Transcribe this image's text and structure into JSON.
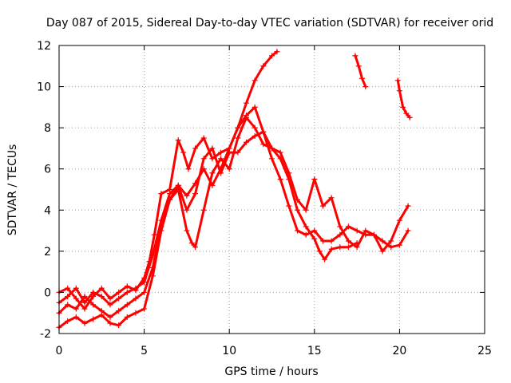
{
  "chart_data": {
    "type": "scatter",
    "title": "Day 087 of 2015, Sidereal Day-to-day VTEC variation (SDTVAR) for receiver orid",
    "xlabel": "GPS time / hours",
    "ylabel": "SDTVAR / TECUs",
    "xlim": [
      0,
      25
    ],
    "ylim": [
      -2,
      12
    ],
    "xticks": [
      "0",
      "5",
      "10",
      "15",
      "20",
      "25"
    ],
    "yticks": [
      "-2",
      "0",
      "2",
      "4",
      "6",
      "8",
      "10",
      "12"
    ],
    "grid": true,
    "marker": "plus",
    "color": "#ff0000",
    "series": [
      {
        "x": [
          0.0,
          0.5,
          1.0,
          1.5,
          2.0,
          2.5,
          3.0,
          3.5,
          4.0,
          4.5,
          5.0,
          5.3,
          5.6,
          6.0,
          6.5,
          7.0,
          7.3,
          7.6,
          8.0,
          8.5,
          9.0,
          9.5,
          10.0,
          10.5,
          11.0,
          11.5,
          12.0,
          12.5,
          12.8
        ],
        "y": [
          0.0,
          0.2,
          -0.3,
          -0.8,
          -0.2,
          0.2,
          -0.3,
          0.0,
          0.3,
          0.1,
          0.7,
          1.5,
          2.8,
          4.8,
          5.0,
          7.4,
          6.8,
          6.0,
          7.0,
          7.5,
          6.5,
          6.8,
          7.0,
          8.0,
          9.2,
          10.3,
          11.0,
          11.5,
          11.7
        ]
      },
      {
        "x": [
          0.0,
          0.5,
          1.0,
          1.5,
          2.0,
          2.5,
          3.0,
          3.5,
          4.0,
          4.5,
          5.0,
          5.5,
          6.0,
          6.5,
          7.0,
          7.5,
          8.0,
          8.5,
          9.0,
          9.5,
          10.0,
          10.5,
          11.0,
          11.5,
          12.0,
          12.5,
          13.0,
          13.5,
          14.0,
          14.5,
          15.0,
          15.5,
          16.0,
          16.5,
          17.0,
          17.5,
          18.0,
          18.5,
          19.0,
          19.5,
          20.0,
          20.5
        ],
        "y": [
          -0.5,
          -0.2,
          0.2,
          -0.5,
          0.0,
          -0.2,
          -0.6,
          -0.3,
          0.0,
          0.2,
          0.5,
          1.8,
          3.5,
          4.8,
          5.2,
          4.7,
          5.3,
          6.0,
          5.2,
          6.0,
          7.0,
          8.0,
          8.6,
          9.0,
          7.8,
          6.5,
          5.5,
          4.2,
          3.0,
          2.8,
          3.0,
          2.5,
          2.5,
          2.8,
          3.2,
          3.0,
          2.8,
          2.8,
          2.5,
          2.2,
          2.3,
          3.0
        ]
      },
      {
        "x": [
          0.0,
          0.5,
          1.0,
          1.5,
          2.0,
          2.5,
          3.0,
          3.5,
          4.0,
          4.5,
          5.0,
          5.5,
          6.0,
          6.5,
          7.0,
          7.5,
          7.8,
          8.0,
          8.5,
          9.0,
          9.5,
          10.0,
          10.5,
          11.0,
          11.5,
          12.0,
          12.5,
          13.0,
          13.5,
          14.0,
          14.5,
          15.0,
          15.5,
          16.0,
          16.5,
          17.0,
          17.5,
          18.0,
          18.5,
          19.0,
          19.5,
          20.0,
          20.5
        ],
        "y": [
          -1.0,
          -0.6,
          -0.8,
          -0.2,
          -0.6,
          -0.9,
          -1.2,
          -0.9,
          -0.6,
          -0.3,
          0.0,
          1.2,
          3.2,
          4.5,
          5.0,
          3.0,
          2.4,
          2.2,
          4.0,
          5.8,
          6.5,
          6.0,
          7.5,
          8.5,
          8.0,
          7.2,
          7.0,
          6.8,
          5.8,
          4.5,
          4.0,
          5.5,
          4.2,
          4.6,
          3.2,
          2.5,
          2.2,
          3.0,
          2.8,
          2.0,
          2.5,
          3.5,
          4.2
        ]
      },
      {
        "x": [
          0.0,
          0.5,
          1.0,
          1.5,
          2.0,
          2.5,
          3.0,
          3.5,
          4.0,
          4.5,
          5.0,
          5.5,
          6.0,
          6.5,
          7.0,
          7.5,
          8.0,
          8.5,
          9.0,
          9.5,
          10.0,
          10.5,
          11.0,
          11.5,
          12.0,
          12.5,
          13.0,
          13.5,
          14.0,
          14.5,
          15.0,
          15.3,
          15.6,
          16.0,
          16.5,
          17.0,
          17.5
        ],
        "y": [
          -1.7,
          -1.4,
          -1.2,
          -1.5,
          -1.3,
          -1.1,
          -1.5,
          -1.6,
          -1.2,
          -1.0,
          -0.8,
          0.8,
          3.0,
          4.5,
          5.2,
          4.0,
          4.8,
          6.5,
          7.0,
          5.8,
          6.8,
          6.8,
          7.3,
          7.6,
          7.8,
          7.0,
          6.5,
          5.5,
          4.0,
          3.2,
          2.6,
          2.0,
          1.6,
          2.1,
          2.2,
          2.2,
          2.4
        ]
      },
      {
        "x": [
          17.4,
          17.6,
          17.8,
          18.0
        ],
        "y": [
          11.5,
          11.0,
          10.4,
          10.0
        ]
      },
      {
        "x": [
          19.9,
          20.0,
          20.2,
          20.4,
          20.6
        ],
        "y": [
          10.3,
          9.8,
          9.0,
          8.7,
          8.5
        ]
      }
    ]
  }
}
